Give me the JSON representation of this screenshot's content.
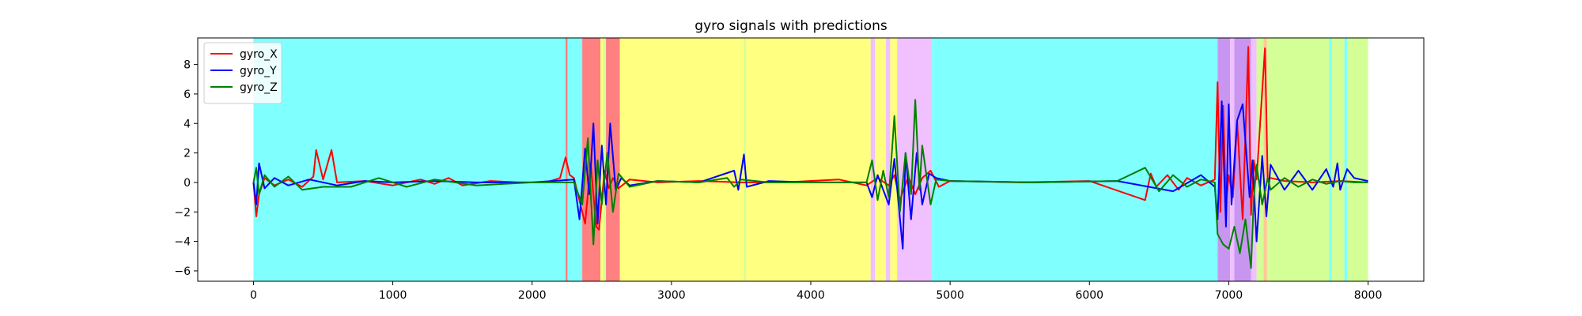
{
  "chart_data": {
    "type": "line",
    "title": "gyro signals with predictions",
    "xlabel": "",
    "ylabel": "",
    "xlim": [
      -400,
      8400
    ],
    "ylim": [
      -6.7,
      9.8
    ],
    "x_ticks": [
      0,
      1000,
      2000,
      3000,
      4000,
      5000,
      6000,
      7000,
      8000
    ],
    "y_ticks": [
      -6,
      -4,
      -2,
      0,
      2,
      4,
      6,
      8
    ],
    "grid": false,
    "legend_position": "top-left",
    "series": [
      {
        "name": "gyro_X",
        "color": "#ff0000",
        "x": [
          0,
          20,
          40,
          80,
          150,
          250,
          350,
          430,
          450,
          500,
          560,
          600,
          800,
          1000,
          1200,
          1300,
          1400,
          1500,
          1700,
          1900,
          2100,
          2200,
          2240,
          2270,
          2300,
          2380,
          2420,
          2460,
          2480,
          2520,
          2550,
          2580,
          2620,
          2700,
          2900,
          3200,
          3500,
          3800,
          4200,
          4400,
          4480,
          4560,
          4600,
          4640,
          4700,
          4750,
          4800,
          4860,
          4920,
          5000,
          5500,
          6000,
          6400,
          6440,
          6480,
          6560,
          6640,
          6700,
          6800,
          6900,
          6920,
          6940,
          6960,
          6980,
          7000,
          7030,
          7060,
          7100,
          7140,
          7160,
          7180,
          7200,
          7240,
          7260,
          7280,
          7300,
          7400,
          7600,
          7800,
          8000
        ],
        "y": [
          0,
          -2.3,
          -0.8,
          0.3,
          -0.2,
          0.2,
          -0.3,
          0.4,
          2.2,
          0.2,
          2.2,
          0,
          0.1,
          -0.2,
          0.2,
          -0.1,
          0.3,
          -0.2,
          0.1,
          0,
          0,
          0.3,
          1.7,
          0.5,
          0.3,
          -2.8,
          1.3,
          -3.0,
          -3.2,
          0.8,
          -0.4,
          0.3,
          -0.4,
          0.2,
          0,
          0.1,
          0,
          0,
          0.2,
          -0.2,
          0.3,
          -0.2,
          0.5,
          -1.2,
          0.4,
          -0.8,
          0.3,
          0.8,
          -0.3,
          0.1,
          0,
          0.1,
          -1.2,
          0.6,
          -0.3,
          0.5,
          -0.5,
          0.3,
          -0.2,
          0.2,
          6.8,
          -2.0,
          5.2,
          -1.5,
          0.5,
          -1.0,
          4.2,
          -2.5,
          9.2,
          -2.2,
          1.5,
          0.2,
          6.2,
          9.1,
          0.2,
          0.3,
          0.1,
          0,
          0.1,
          0
        ]
      },
      {
        "name": "gyro_Y",
        "color": "#0000ff",
        "x": [
          0,
          20,
          40,
          80,
          150,
          250,
          400,
          600,
          800,
          1000,
          1300,
          1600,
          2000,
          2300,
          2340,
          2380,
          2410,
          2440,
          2470,
          2500,
          2530,
          2560,
          2600,
          2640,
          2700,
          2900,
          3200,
          3450,
          3480,
          3520,
          3540,
          3700,
          4000,
          4400,
          4440,
          4480,
          4560,
          4600,
          4660,
          4680,
          4720,
          4760,
          4800,
          4850,
          4900,
          5000,
          5600,
          6200,
          6600,
          6800,
          6900,
          6920,
          6950,
          6980,
          7000,
          7020,
          7060,
          7100,
          7150,
          7170,
          7200,
          7240,
          7270,
          7300,
          7400,
          7500,
          7600,
          7700,
          7750,
          7780,
          7800,
          7850,
          7900,
          8000
        ],
        "y": [
          0,
          -1.5,
          1.3,
          -0.4,
          0.3,
          -0.2,
          0.2,
          -0.2,
          0.1,
          0,
          0.1,
          0,
          0,
          0.2,
          -2.5,
          2.3,
          -0.8,
          4.0,
          -2.8,
          2.5,
          -1.5,
          4.0,
          -0.5,
          0.3,
          -0.2,
          0.1,
          0,
          0.8,
          -0.5,
          1.9,
          -0.3,
          0.1,
          0,
          0,
          -1.0,
          0.5,
          -1.5,
          1.6,
          -4.5,
          2.0,
          -2.5,
          2.0,
          -1.5,
          0.6,
          0.3,
          0.1,
          0,
          0.1,
          -0.6,
          0.5,
          -0.3,
          -2.5,
          5.5,
          -3.0,
          5.3,
          -1.5,
          4.2,
          5.3,
          -1.0,
          1.5,
          -4.0,
          1.8,
          -2.3,
          1.2,
          -0.5,
          0.8,
          -0.5,
          0.9,
          -0.3,
          1.3,
          -0.5,
          0.9,
          0.3,
          0.1
        ]
      },
      {
        "name": "gyro_Z",
        "color": "#008000",
        "x": [
          0,
          20,
          40,
          80,
          150,
          250,
          350,
          500,
          700,
          900,
          1100,
          1300,
          1600,
          2000,
          2300,
          2360,
          2400,
          2440,
          2470,
          2500,
          2540,
          2580,
          2620,
          2700,
          2900,
          3200,
          3400,
          3450,
          3500,
          3700,
          4000,
          4400,
          4440,
          4480,
          4520,
          4560,
          4600,
          4640,
          4680,
          4720,
          4750,
          4780,
          4800,
          4860,
          4900,
          5000,
          5600,
          6200,
          6400,
          6500,
          6600,
          6700,
          6800,
          6900,
          6920,
          6960,
          7000,
          7040,
          7080,
          7120,
          7160,
          7180,
          7200,
          7240,
          7280,
          7300,
          7400,
          7500,
          7600,
          7700,
          7800,
          7900,
          8000
        ],
        "y": [
          0,
          1.0,
          -0.8,
          0.5,
          -0.3,
          0.4,
          -0.5,
          -0.3,
          -0.3,
          0.3,
          -0.3,
          0.2,
          -0.2,
          0,
          0,
          -1.5,
          3.0,
          -4.2,
          1.5,
          -1.5,
          2.0,
          -2.0,
          0.6,
          -0.3,
          0.1,
          0,
          0.3,
          -0.3,
          0.2,
          0,
          0,
          0,
          1.5,
          -1.2,
          0.8,
          -1.0,
          4.5,
          -2.0,
          2.0,
          -0.8,
          5.6,
          -0.5,
          2.5,
          -1.5,
          0.2,
          0.1,
          0,
          0.1,
          1.0,
          -0.6,
          0.5,
          -0.3,
          0.2,
          0,
          -3.5,
          -4.2,
          -4.5,
          -3.0,
          -4.8,
          -2.5,
          -5.8,
          -1.0,
          1.2,
          -1.5,
          0.3,
          -0.5,
          0.3,
          -0.3,
          0.2,
          -0.1,
          0.1,
          0,
          0
        ]
      }
    ],
    "prediction_regions": [
      {
        "x0": 0,
        "x1": 2240,
        "color": "#80ffff"
      },
      {
        "x0": 2240,
        "x1": 2255,
        "color": "#ff8080"
      },
      {
        "x0": 2255,
        "x1": 2360,
        "color": "#80ffff"
      },
      {
        "x0": 2360,
        "x1": 2490,
        "color": "#ff8080"
      },
      {
        "x0": 2490,
        "x1": 2510,
        "color": "#ffff80"
      },
      {
        "x0": 2510,
        "x1": 2530,
        "color": "#d4ff96"
      },
      {
        "x0": 2530,
        "x1": 2630,
        "color": "#ff8080"
      },
      {
        "x0": 2630,
        "x1": 3520,
        "color": "#ffff80"
      },
      {
        "x0": 3520,
        "x1": 3535,
        "color": "#d4ff96"
      },
      {
        "x0": 3535,
        "x1": 4430,
        "color": "#ffff80"
      },
      {
        "x0": 4430,
        "x1": 4460,
        "color": "#f0c0ff"
      },
      {
        "x0": 4460,
        "x1": 4540,
        "color": "#ffff80"
      },
      {
        "x0": 4540,
        "x1": 4570,
        "color": "#f0c0ff"
      },
      {
        "x0": 4570,
        "x1": 4620,
        "color": "#ffff80"
      },
      {
        "x0": 4620,
        "x1": 4870,
        "color": "#f0c0ff"
      },
      {
        "x0": 4870,
        "x1": 6920,
        "color": "#80ffff"
      },
      {
        "x0": 6920,
        "x1": 7010,
        "color": "#c896f0"
      },
      {
        "x0": 7010,
        "x1": 7040,
        "color": "#f0c0ff"
      },
      {
        "x0": 7040,
        "x1": 7160,
        "color": "#c896f0"
      },
      {
        "x0": 7160,
        "x1": 7200,
        "color": "#f0c0ff"
      },
      {
        "x0": 7200,
        "x1": 7250,
        "color": "#d4ff96"
      },
      {
        "x0": 7250,
        "x1": 7275,
        "color": "#ffc896"
      },
      {
        "x0": 7275,
        "x1": 7720,
        "color": "#d4ff96"
      },
      {
        "x0": 7720,
        "x1": 7740,
        "color": "#80ffff"
      },
      {
        "x0": 7740,
        "x1": 7830,
        "color": "#d4ff96"
      },
      {
        "x0": 7830,
        "x1": 7850,
        "color": "#80ffff"
      },
      {
        "x0": 7850,
        "x1": 8000,
        "color": "#d4ff96"
      }
    ]
  }
}
